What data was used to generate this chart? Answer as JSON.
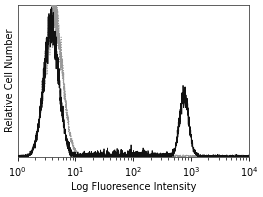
{
  "title": "",
  "xlabel": "Log Fluoresence Intensity",
  "ylabel": "Relative Cell Number",
  "xlim": [
    1,
    10000
  ],
  "ylim": [
    0,
    1.05
  ],
  "solid_color": "#111111",
  "dotted_color": "#999999",
  "solid_lw": 0.6,
  "dotted_lw": 0.7,
  "xlabel_fontsize": 7,
  "ylabel_fontsize": 7,
  "tick_fontsize": 7,
  "peak1_log": 0.58,
  "peak1_sigma": 0.13,
  "peak2_log": 2.88,
  "peak2_sigma": 0.08,
  "dotted_peak_log": 0.62,
  "dotted_peak_sigma": 0.15
}
